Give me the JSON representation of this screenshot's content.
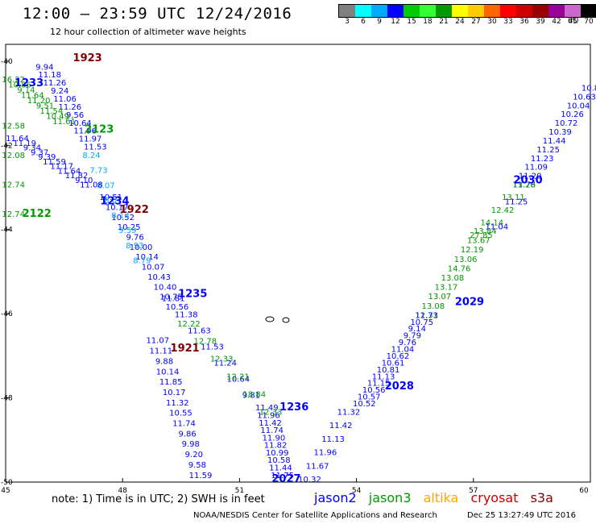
{
  "header": {
    "title": "12:00 – 23:59 UTC 12/24/2016",
    "subtitle": "12 hour collection of altimeter wave heights"
  },
  "legend": {
    "unit": "(ft)",
    "colors": [
      "#808080",
      "#00ffff",
      "#00aaff",
      "#0000ff",
      "#00cc00",
      "#33ff33",
      "#009900",
      "#ffff00",
      "#ffcc00",
      "#ff6600",
      "#ff0000",
      "#cc0000",
      "#990000",
      "#990099",
      "#cc66cc",
      "#000000"
    ],
    "labels": [
      "3",
      "6",
      "9",
      "12",
      "15",
      "18",
      "21",
      "24",
      "27",
      "30",
      "33",
      "36",
      "39",
      "42",
      "45",
      "70"
    ]
  },
  "axes": {
    "x_ticks": [
      "45",
      "48",
      "51",
      "54",
      "57",
      "60"
    ],
    "y_ticks": [
      "-40",
      "-42",
      "-44",
      "-46",
      "-48",
      "-50"
    ]
  },
  "colors": {
    "jason2": "#0000ff",
    "jason3": "#009900",
    "altika": "#ffa500",
    "cryosat": "#cc0000",
    "s3a": "#800000",
    "green_light": "#33dd33",
    "cyan": "#00aaff"
  },
  "footer": {
    "note": "note: 1) Time is in UTC; 2) SWH is in feet",
    "satellites": [
      "jason2",
      "jason3",
      "altika",
      "cryosat",
      "s3a"
    ],
    "credit": "NOAA/NESDIS Center for Satellite Applications and Research",
    "timestamp": "Dec 25 13:27:49 UTC 2016"
  },
  "chart_data": {
    "type": "scatter",
    "xlim": [
      45,
      60
    ],
    "ylim": [
      -50,
      -39.6
    ],
    "track_labels": [
      {
        "text": "2030",
        "lon": 58.4,
        "lat": -42.9,
        "color": "jason2"
      },
      {
        "text": "2029",
        "lon": 56.9,
        "lat": -45.8,
        "color": "jason2"
      },
      {
        "text": "2028",
        "lon": 55.1,
        "lat": -47.8,
        "color": "jason2"
      },
      {
        "text": "1236",
        "lon": 52.4,
        "lat": -48.3,
        "color": "jason2"
      },
      {
        "text": "2027",
        "lon": 52.2,
        "lat": -50.0,
        "color": "jason2"
      },
      {
        "text": "1235",
        "lon": 49.8,
        "lat": -45.6,
        "color": "jason2"
      },
      {
        "text": "1921",
        "lon": 49.6,
        "lat": -46.9,
        "color": "s3a"
      },
      {
        "text": "1922",
        "lon": 48.3,
        "lat": -43.6,
        "color": "s3a"
      },
      {
        "text": "1234",
        "lon": 47.8,
        "lat": -43.4,
        "color": "jason2"
      },
      {
        "text": "2122",
        "lon": 45.8,
        "lat": -43.7,
        "color": "jason3"
      },
      {
        "text": "2123",
        "lon": 47.4,
        "lat": -41.7,
        "color": "jason3"
      },
      {
        "text": "1233",
        "lon": 45.6,
        "lat": -40.6,
        "color": "jason2"
      },
      {
        "text": "1923",
        "lon": 47.1,
        "lat": -40.0,
        "color": "s3a"
      }
    ],
    "tracks": [
      {
        "name": "2030",
        "color": "jason2",
        "start": [
          60.0,
          -40.7
        ],
        "end": [
          58.3,
          -43.0
        ],
        "values": [
          "10.8",
          "10.63",
          "10.04",
          "10.26",
          "10.72",
          "10.39",
          "11.44",
          "11.25",
          "11.23",
          "11.09",
          "11.20",
          "11.76"
        ]
      },
      {
        "name": "2030-j3",
        "color": "jason3",
        "start": [
          58.3,
          -43.0
        ],
        "end": [
          57.2,
          -44.2
        ],
        "values": [
          "13.28",
          "13.11",
          "12.42",
          "14.14",
          "27.85"
        ]
      },
      {
        "name": "2029",
        "color": "jason3",
        "start": [
          57.3,
          -44.1
        ],
        "end": [
          55.8,
          -46.1
        ],
        "values": [
          "13.84",
          "13.67",
          "12.19",
          "13.06",
          "14.76",
          "13.08",
          "13.17",
          "13.07",
          "13.08",
          "12.31"
        ]
      },
      {
        "name": "2029-j2",
        "color": "jason2",
        "start": [
          58.1,
          -43.4
        ],
        "end": [
          57.6,
          -44.0
        ],
        "values": [
          "11.25",
          "11.04"
        ]
      },
      {
        "name": "2028",
        "color": "jason2",
        "start": [
          55.8,
          -46.1
        ],
        "end": [
          54.2,
          -48.2
        ],
        "values": [
          "11.73",
          "10.75",
          "9.14",
          "9.79",
          "9.76",
          "11.04",
          "10.62",
          "10.61",
          "10.81",
          "11.13",
          "11.15",
          "10.56",
          "10.57",
          "10.52"
        ]
      },
      {
        "name": "2027",
        "color": "jason2",
        "start": [
          53.8,
          -48.4
        ],
        "end": [
          52.8,
          -50.0
        ],
        "values": [
          "11.32",
          "11.42",
          "11.13",
          "11.96",
          "11.67",
          "10.32"
        ]
      },
      {
        "name": "1236",
        "color": "jason2",
        "start": [
          51.7,
          -48.3
        ],
        "end": [
          52.1,
          -49.9
        ],
        "values": [
          "11.49",
          "11.96",
          "11.42",
          "11.74",
          "11.90",
          "11.82",
          "10.99",
          "10.58",
          "11.44",
          "11.75"
        ]
      },
      {
        "name": "1235-j2",
        "color": "jason2",
        "start": [
          49.3,
          -45.7
        ],
        "end": [
          51.3,
          -48.0
        ],
        "values": [
          "11.81",
          "11.38",
          "11.63",
          "11.53",
          "11.24",
          "10.64",
          "9.81"
        ]
      },
      {
        "name": "1235-j3",
        "color": "jason3",
        "start": [
          49.7,
          -46.3
        ],
        "end": [
          51.8,
          -48.4
        ],
        "values": [
          "12.22",
          "12.78",
          "12.33",
          "12.21",
          "18.84",
          "12.33"
        ]
      },
      {
        "name": "1921",
        "color": "jason2",
        "start": [
          48.9,
          -46.7
        ],
        "end": [
          50.0,
          -49.9
        ],
        "values": [
          "11.07",
          "11.11",
          "9.88",
          "10.14",
          "11.85",
          "10.17",
          "11.32",
          "10.55",
          "11.74",
          "9.86",
          "9.98",
          "9.20",
          "9.58",
          "11.59"
        ]
      },
      {
        "name": "1234",
        "color": "jason2",
        "start": [
          47.7,
          -43.3
        ],
        "end": [
          49.4,
          -45.9
        ],
        "values": [
          "10.51",
          "10.17",
          "10.52",
          "10.25",
          "9.76",
          "10.00",
          "10.14",
          "10.07",
          "10.43",
          "10.40",
          "10.75",
          "10.56"
        ]
      },
      {
        "name": "1922",
        "color": "cyan",
        "start": [
          47.2,
          -42.3
        ],
        "end": [
          48.5,
          -44.8
        ],
        "values": [
          "8.24",
          "7.73",
          "8.07",
          "8.07",
          "8.13",
          "9.59",
          "8.93",
          "8.79"
        ]
      },
      {
        "name": "2122",
        "color": "jason3",
        "start": [
          45.2,
          -41.6
        ],
        "end": [
          45.2,
          -43.7
        ],
        "values": [
          "12.58",
          "12.08",
          "12.74",
          "12.74"
        ]
      },
      {
        "name": "1233",
        "color": "jason2",
        "start": [
          45.3,
          -41.9
        ],
        "end": [
          47.2,
          -43.0
        ],
        "values": [
          "11.64",
          "11.19",
          "9.34",
          "9.37",
          "9.39",
          "11.59",
          "11.17",
          "11.64",
          "11.82",
          "9.10",
          "11.08"
        ]
      },
      {
        "name": "2123",
        "color": "jason2",
        "start": [
          46.0,
          -40.2
        ],
        "end": [
          47.3,
          -42.1
        ],
        "values": [
          "9.94",
          "11.18",
          "11.26",
          "9.24",
          "11.06",
          "11.26",
          "9.56",
          "10.64",
          "11.96",
          "11.97",
          "11.53"
        ]
      },
      {
        "name": "1923",
        "color": "jason3",
        "start": [
          45.2,
          -40.5
        ],
        "end": [
          46.5,
          -41.5
        ],
        "values": [
          "16.22",
          "10.86",
          "9.14",
          "11.64",
          "11.20",
          "9.51",
          "11.54",
          "10.49",
          "11.61"
        ]
      }
    ]
  }
}
